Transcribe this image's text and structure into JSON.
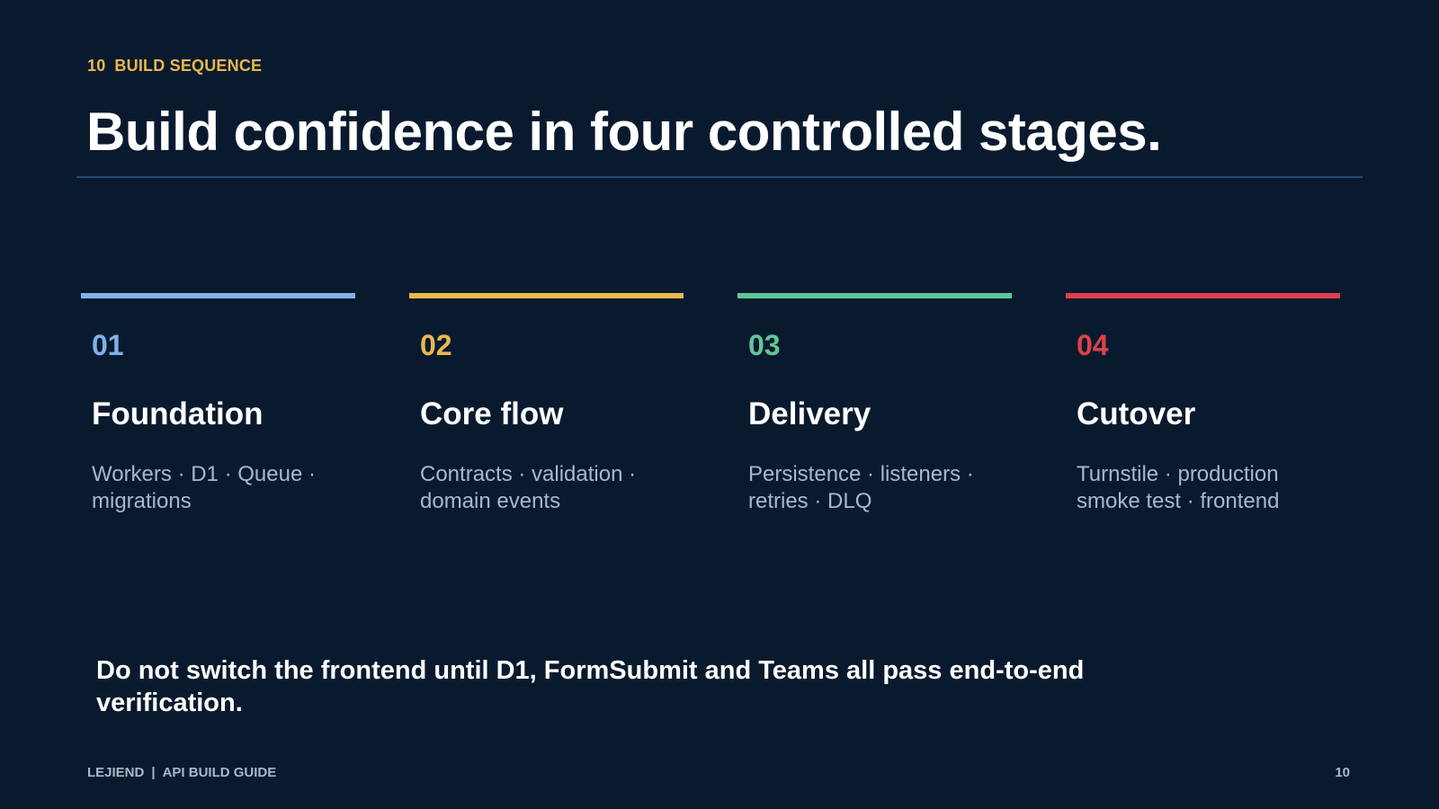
{
  "eyebrow": {
    "number": "10",
    "label": "BUILD SEQUENCE"
  },
  "title": "Build confidence in four controlled stages.",
  "stages": [
    {
      "number": "01",
      "name": "Foundation",
      "description": "Workers · D1 · Queue · migrations",
      "color": "#7fb2ea"
    },
    {
      "number": "02",
      "name": "Core flow",
      "description": "Contracts · validation · domain events",
      "color": "#e9b84f"
    },
    {
      "number": "03",
      "name": "Delivery",
      "description": "Persistence · listeners · retries · DLQ",
      "color": "#5fc796"
    },
    {
      "number": "04",
      "name": "Cutover",
      "description": "Turnstile · production smoke test · frontend",
      "color": "#e0404b"
    }
  ],
  "note": "Do not switch the frontend until D1, FormSubmit and Teams all pass end-to-end verification.",
  "footer": {
    "brand": "LEJIEND",
    "separator": "|",
    "guide": "API BUILD GUIDE",
    "page": "10"
  }
}
